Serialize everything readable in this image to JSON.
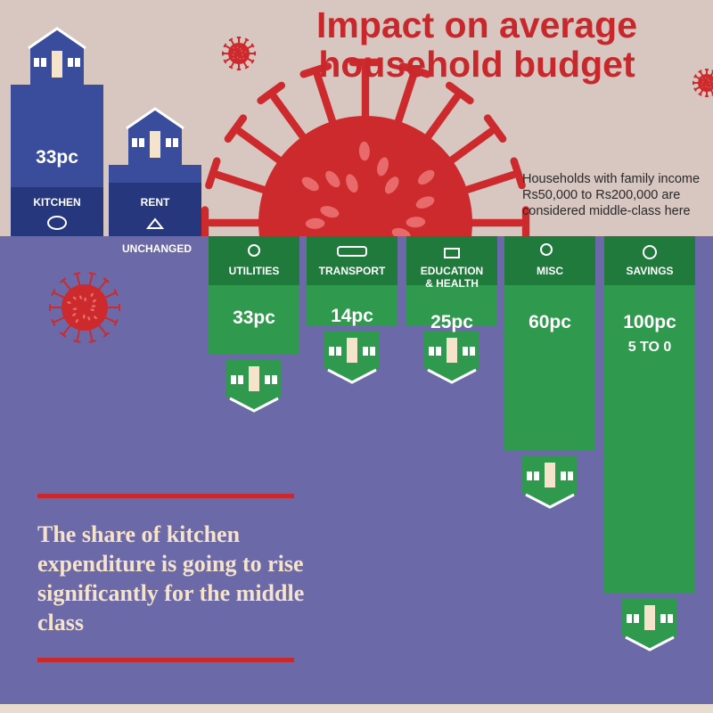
{
  "title": "Impact on average household budget",
  "note": {
    "line1": "Households with family income",
    "line2": "Rs50,000 to Rs200,000 are",
    "line3": "considered middle-class here"
  },
  "unchanged_label": "UNCHANGED",
  "callout": "The share of kitchen expenditure is going to rise significantly for the middle class",
  "colors": {
    "background_top": "#d8c6c0",
    "background_bottom": "#6b69a7",
    "increase_bars": "#2f9a4d",
    "kitchen_rent_bars": "#3a4c9c",
    "virus": "#cc2a2c",
    "accent_lines": "#c62a2e"
  },
  "icons": {
    "kitchen": "cooking-pot-icon",
    "rent": "house-icon",
    "utilities": "light-bulb-icon",
    "transport": "car-icon",
    "education_health": "apple-books-icon",
    "misc": "gears-icon",
    "savings": "money-bag-icon"
  },
  "chart_data": {
    "type": "bar",
    "title": "Impact on average household budget",
    "unit": "pc",
    "categories": [
      "KITCHEN",
      "RENT",
      "UTILITIES",
      "TRANSPORT",
      "EDUCATION & HEALTH",
      "MISC",
      "SAVINGS"
    ],
    "series": [
      {
        "values": [
          33,
          0,
          -33,
          -14,
          -25,
          -60,
          -100
        ]
      }
    ],
    "data_labels": [
      "33pc",
      "",
      "33pc",
      "14pc",
      "25pc",
      "60pc",
      "100pc"
    ],
    "annotations": {
      "RENT": "UNCHANGED",
      "SAVINGS": "5 TO 0"
    },
    "direction": {
      "increase": [
        "KITCHEN"
      ],
      "unchanged": [
        "RENT"
      ],
      "decrease": [
        "UTILITIES",
        "TRANSPORT",
        "EDUCATION & HEALTH",
        "MISC",
        "SAVINGS"
      ]
    }
  }
}
